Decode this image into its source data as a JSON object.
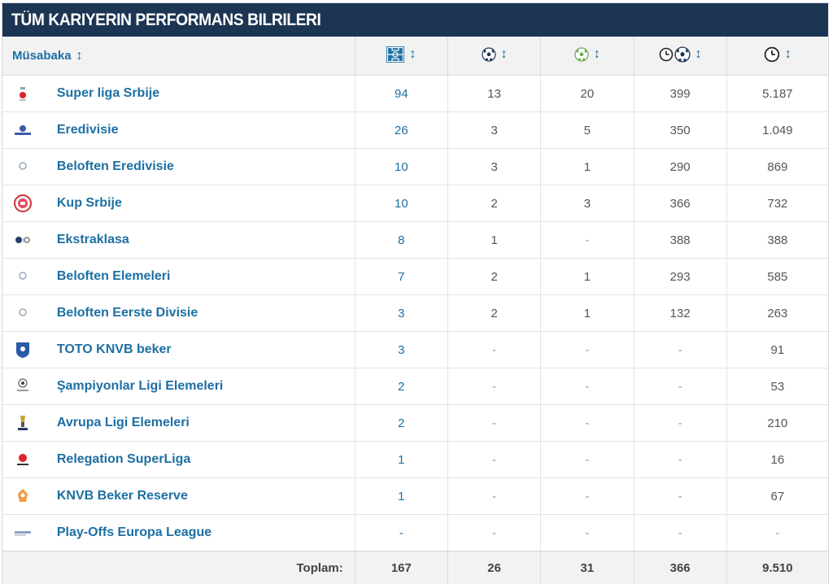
{
  "title": "TÜM KARIYERIN PERFORMANS BILRILERI",
  "header": {
    "competition_label": "Müsabaka",
    "sort_glyph": "↕",
    "icons": [
      "appearances-icon",
      "goals-icon",
      "assists-icon",
      "minutes-per-goal-icon",
      "minutes-played-icon"
    ]
  },
  "rows": [
    {
      "logo": "super-liga-srbije-logo",
      "name": "Super liga Srbije",
      "apps": "94",
      "goals": "13",
      "assists": "20",
      "mpg": "399",
      "minutes": "5.187"
    },
    {
      "logo": "eredivisie-logo",
      "name": "Eredivisie",
      "apps": "26",
      "goals": "3",
      "assists": "5",
      "mpg": "350",
      "minutes": "1.049"
    },
    {
      "logo": "beloften-eredivisie-logo",
      "name": "Beloften Eredivisie",
      "apps": "10",
      "goals": "3",
      "assists": "1",
      "mpg": "290",
      "minutes": "869"
    },
    {
      "logo": "kup-srbije-logo",
      "name": "Kup Srbije",
      "apps": "10",
      "goals": "2",
      "assists": "3",
      "mpg": "366",
      "minutes": "732"
    },
    {
      "logo": "ekstraklasa-logo",
      "name": "Ekstraklasa",
      "apps": "8",
      "goals": "1",
      "assists": "-",
      "mpg": "388",
      "minutes": "388"
    },
    {
      "logo": "beloften-elemeleri-logo",
      "name": "Beloften Elemeleri",
      "apps": "7",
      "goals": "2",
      "assists": "1",
      "mpg": "293",
      "minutes": "585"
    },
    {
      "logo": "beloften-eerste-divisie-logo",
      "name": "Beloften Eerste Divisie",
      "apps": "3",
      "goals": "2",
      "assists": "1",
      "mpg": "132",
      "minutes": "263"
    },
    {
      "logo": "toto-knvb-beker-logo",
      "name": "TOTO KNVB beker",
      "apps": "3",
      "goals": "-",
      "assists": "-",
      "mpg": "-",
      "minutes": "91"
    },
    {
      "logo": "champions-league-qualifying-logo",
      "name": "Şampiyonlar Ligi Elemeleri",
      "apps": "2",
      "goals": "-",
      "assists": "-",
      "mpg": "-",
      "minutes": "53"
    },
    {
      "logo": "europa-league-qualifying-logo",
      "name": "Avrupa Ligi Elemeleri",
      "apps": "2",
      "goals": "-",
      "assists": "-",
      "mpg": "-",
      "minutes": "210"
    },
    {
      "logo": "relegation-superliga-logo",
      "name": "Relegation SuperLiga",
      "apps": "1",
      "goals": "-",
      "assists": "-",
      "mpg": "-",
      "minutes": "16"
    },
    {
      "logo": "knvb-beker-reserve-logo",
      "name": "KNVB Beker Reserve",
      "apps": "1",
      "goals": "-",
      "assists": "-",
      "mpg": "-",
      "minutes": "67"
    },
    {
      "logo": "play-offs-europa-league-logo",
      "name": "Play-Offs Europa League",
      "apps": "-",
      "goals": "-",
      "assists": "-",
      "mpg": "-",
      "minutes": "-"
    }
  ],
  "totals": {
    "label": "Toplam:",
    "apps": "167",
    "goals": "26",
    "assists": "31",
    "mpg": "366",
    "minutes": "9.510"
  },
  "colors": {
    "title_bg": "#1c3553",
    "link": "#1d6fa3",
    "header_bg": "#f2f2f2"
  }
}
